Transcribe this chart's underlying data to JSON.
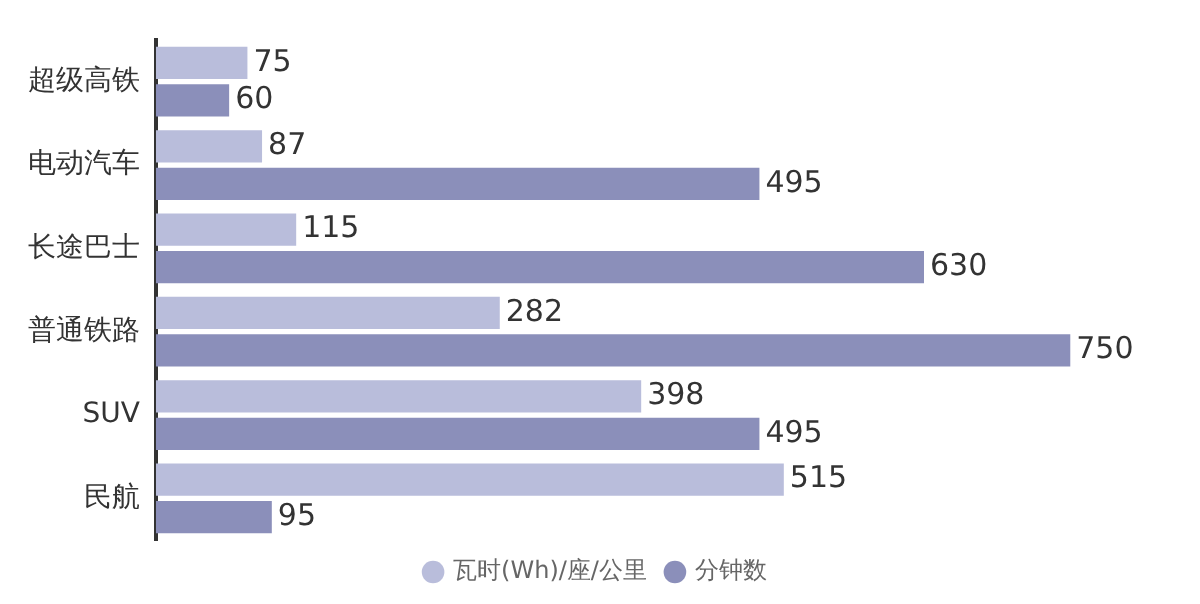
{
  "chart_data": {
    "type": "bar",
    "orientation": "horizontal",
    "categories": [
      "超级高铁",
      "电动汽车",
      "长途巴士",
      "普通铁路",
      "SUV",
      "民航"
    ],
    "series": [
      {
        "name": "瓦时(Wh)/座/公里",
        "color": "#b9bddb",
        "values": [
          75,
          87,
          115,
          282,
          398,
          515
        ]
      },
      {
        "name": "分钟数",
        "color": "#8b8fba",
        "values": [
          60,
          495,
          630,
          750,
          495,
          95
        ]
      }
    ],
    "data_labels": true,
    "legend": "bottom",
    "tick_labels": "y"
  }
}
